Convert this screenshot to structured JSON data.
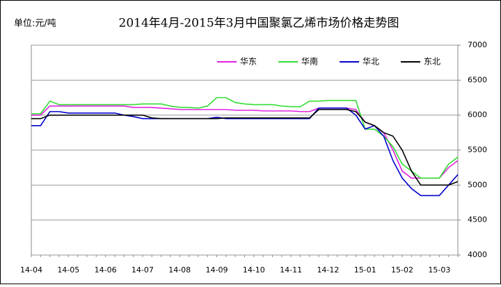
{
  "chart_data": {
    "type": "line",
    "title": "2014年4月-2015年3月中国聚氯乙烯市场价格走势图",
    "unit": "单位:元/吨",
    "categories": [
      "14-04",
      null,
      null,
      null,
      "14-05",
      null,
      null,
      null,
      "14-06",
      null,
      null,
      null,
      "14-07",
      null,
      null,
      null,
      "14-08",
      null,
      null,
      null,
      "14-09",
      null,
      null,
      null,
      "14-10",
      null,
      null,
      null,
      "14-11",
      null,
      null,
      null,
      "14-12",
      null,
      null,
      null,
      "15-01",
      null,
      null,
      null,
      "15-02",
      null,
      null,
      null,
      "15-03",
      null,
      null
    ],
    "series": [
      {
        "name": "华东",
        "color": "#e020e0",
        "values": [
          6000,
          6000,
          6130,
          6130,
          6130,
          6130,
          6130,
          6130,
          6130,
          6130,
          6130,
          6110,
          6110,
          6110,
          6100,
          6090,
          6080,
          6080,
          6080,
          6080,
          6080,
          6080,
          6070,
          6070,
          6070,
          6060,
          6060,
          6060,
          6060,
          6050,
          6050,
          6100,
          6100,
          6100,
          6100,
          6080,
          5900,
          5850,
          5750,
          5500,
          5200,
          5100,
          5100,
          5100,
          5100,
          5250,
          5350
        ]
      },
      {
        "name": "华南",
        "color": "#33dd33",
        "values": [
          6020,
          6020,
          6200,
          6150,
          6150,
          6150,
          6150,
          6150,
          6150,
          6150,
          6150,
          6150,
          6160,
          6160,
          6160,
          6130,
          6110,
          6110,
          6100,
          6130,
          6250,
          6250,
          6180,
          6160,
          6150,
          6150,
          6150,
          6130,
          6120,
          6120,
          6200,
          6200,
          6210,
          6210,
          6210,
          6210,
          5800,
          5800,
          5700,
          5550,
          5300,
          5200,
          5100,
          5100,
          5100,
          5300,
          5400
        ]
      },
      {
        "name": "华北",
        "color": "#0000cc",
        "values": [
          5850,
          5850,
          6050,
          6050,
          6030,
          6030,
          6030,
          6030,
          6030,
          6030,
          6000,
          5980,
          5950,
          5950,
          5950,
          5950,
          5950,
          5950,
          5950,
          5950,
          5970,
          5950,
          5950,
          5950,
          5950,
          5950,
          5950,
          5950,
          5950,
          5950,
          5950,
          6100,
          6100,
          6100,
          6100,
          6000,
          5800,
          5850,
          5700,
          5350,
          5100,
          4950,
          4850,
          4850,
          4850,
          5000,
          5150
        ]
      },
      {
        "name": "东北",
        "color": "#000000",
        "values": [
          5950,
          5950,
          6000,
          6000,
          6000,
          6000,
          6000,
          6000,
          6000,
          6000,
          6000,
          6000,
          6000,
          5960,
          5950,
          5950,
          5950,
          5950,
          5950,
          5950,
          5950,
          5960,
          5960,
          5960,
          5960,
          5960,
          5960,
          5960,
          5960,
          5960,
          5960,
          6080,
          6080,
          6080,
          6080,
          6050,
          5900,
          5850,
          5750,
          5700,
          5500,
          5200,
          5000,
          5000,
          5000,
          5000,
          5050
        ]
      }
    ],
    "ylim": [
      4000,
      7000
    ],
    "yticks": [
      4000,
      4500,
      5000,
      5500,
      6000,
      6500,
      7000
    ],
    "grid": true,
    "legend": "top-right"
  }
}
